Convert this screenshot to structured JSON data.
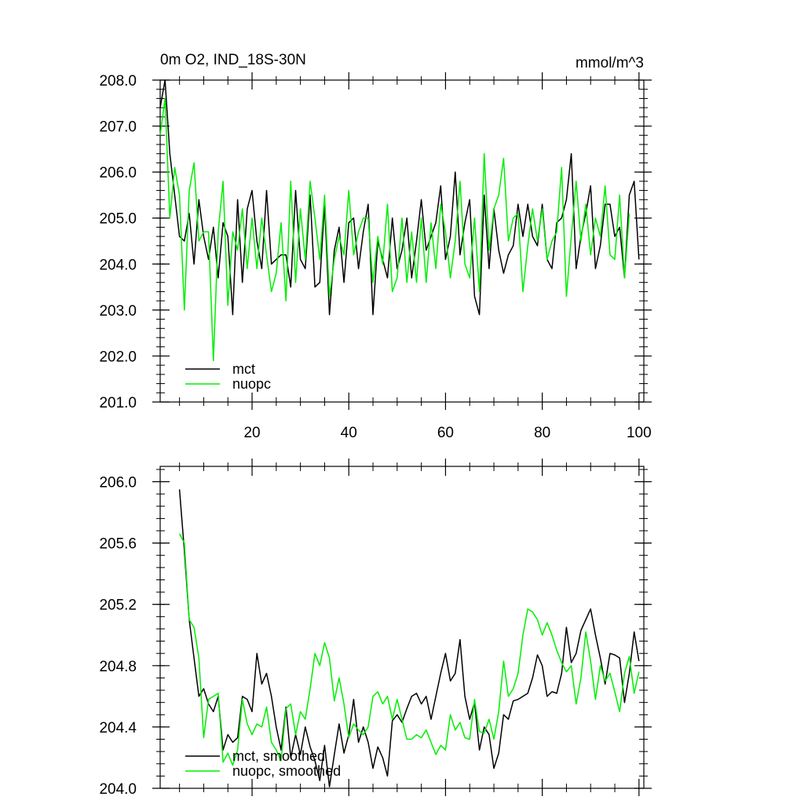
{
  "chart_data": [
    {
      "type": "line",
      "title": "0m O2, IND_18S-30N",
      "units": "mmol/m^3",
      "xlabel": "",
      "ylabel": "",
      "xlim": [
        1,
        101
      ],
      "ylim": [
        201.0,
        208.0
      ],
      "xticks": [
        20,
        40,
        60,
        80,
        100
      ],
      "xtick_labels": [
        "20",
        "40",
        "60",
        "80",
        "100"
      ],
      "yticks": [
        201.0,
        202.0,
        203.0,
        204.0,
        205.0,
        206.0,
        207.0,
        208.0
      ],
      "ytick_labels": [
        "201.0",
        "202.0",
        "203.0",
        "204.0",
        "205.0",
        "206.0",
        "207.0",
        "208.0"
      ],
      "legend_position": "bottom-left",
      "grid": false,
      "series": [
        {
          "name": "mct",
          "color": "#000000",
          "x_start": 1,
          "values": [
            207.4,
            208.0,
            206.4,
            205.5,
            204.6,
            204.5,
            205.1,
            204.0,
            205.4,
            204.6,
            204.1,
            204.8,
            203.7,
            204.9,
            204.6,
            202.9,
            205.4,
            203.6,
            205.2,
            205.6,
            204.5,
            203.9,
            205.6,
            204.0,
            204.1,
            204.2,
            204.2,
            203.5,
            205.6,
            204.1,
            203.9,
            205.5,
            203.5,
            203.6,
            205.3,
            202.9,
            204.3,
            204.8,
            203.6,
            204.9,
            205.0,
            203.9,
            204.7,
            205.3,
            202.9,
            204.5,
            204.1,
            203.7,
            205.0,
            203.9,
            204.3,
            205.0,
            203.7,
            204.5,
            205.4,
            204.3,
            204.6,
            204.9,
            205.7,
            204.1,
            204.6,
            206.0,
            204.2,
            204.9,
            205.4,
            203.3,
            202.9,
            205.5,
            203.9,
            205.2,
            204.3,
            203.8,
            204.2,
            204.4,
            205.3,
            204.6,
            205.3,
            204.6,
            204.4,
            205.3,
            204.1,
            203.9,
            204.9,
            205.0,
            205.4,
            206.4,
            203.9,
            204.6,
            205.1,
            205.7,
            203.9,
            204.4,
            205.3,
            205.3,
            204.6,
            204.8,
            203.7,
            205.5,
            205.8,
            204.1
          ]
        },
        {
          "name": "nuopc",
          "color": "#00ee00",
          "x_start": 1,
          "values": [
            206.8,
            207.6,
            205.0,
            206.1,
            205.5,
            203.0,
            205.6,
            206.2,
            204.5,
            204.7,
            204.7,
            201.9,
            204.7,
            205.8,
            203.1,
            204.7,
            204.3,
            205.2,
            203.9,
            205.0,
            203.9,
            205.0,
            204.2,
            203.4,
            203.8,
            204.9,
            203.2,
            205.8,
            203.6,
            205.2,
            204.1,
            205.8,
            205.0,
            204.1,
            205.5,
            203.3,
            204.1,
            204.6,
            204.2,
            205.6,
            204.2,
            204.7,
            205.0,
            205.0,
            203.6,
            204.6,
            204.0,
            205.3,
            203.4,
            203.7,
            205.0,
            203.6,
            204.7,
            203.6,
            205.0,
            203.6,
            204.9,
            203.9,
            205.3,
            204.7,
            203.7,
            204.5,
            205.8,
            204.0,
            203.7,
            205.0,
            203.4,
            206.4,
            204.3,
            205.2,
            205.5,
            206.3,
            204.5,
            205.0,
            205.1,
            203.4,
            204.4,
            205.2,
            204.5,
            205.2,
            204.1,
            204.5,
            204.7,
            206.1,
            203.3,
            204.6,
            205.8,
            204.5,
            205.3,
            204.2,
            205.0,
            204.6,
            205.7,
            204.2,
            204.1,
            205.5,
            203.7,
            205.1
          ]
        }
      ]
    },
    {
      "type": "line",
      "title": "",
      "xlabel": "",
      "ylabel": "",
      "xlim": [
        1,
        101
      ],
      "ylim": [
        204.0,
        206.1
      ],
      "xticks": [
        20,
        40,
        60,
        80,
        100
      ],
      "xtick_labels": [],
      "yticks": [
        204.0,
        204.4,
        204.8,
        205.2,
        205.6,
        206.0
      ],
      "ytick_labels": [
        "204.0",
        "204.4",
        "204.8",
        "205.2",
        "205.6",
        "206.0"
      ],
      "legend_position": "bottom-left",
      "grid": false,
      "series": [
        {
          "name": "mct, smoothed",
          "color": "#000000",
          "x_start": 5,
          "values": [
            205.95,
            205.55,
            205.1,
            204.85,
            204.6,
            204.65,
            204.55,
            204.5,
            204.6,
            204.25,
            204.35,
            204.3,
            204.33,
            204.6,
            204.58,
            204.5,
            204.88,
            204.68,
            204.75,
            204.6,
            204.4,
            204.25,
            204.53,
            204.2,
            204.35,
            204.22,
            204.4,
            204.27,
            204.18,
            204.05,
            204.28,
            204.01,
            204.22,
            204.42,
            204.23,
            204.35,
            204.58,
            204.3,
            204.4,
            204.3,
            204.13,
            204.27,
            204.2,
            204.08,
            204.44,
            204.48,
            204.43,
            204.52,
            204.6,
            204.62,
            204.55,
            204.6,
            204.45,
            204.6,
            204.75,
            204.88,
            204.7,
            204.75,
            204.97,
            204.6,
            204.45,
            204.56,
            204.25,
            204.4,
            204.35,
            204.13,
            204.23,
            204.48,
            204.45,
            204.57,
            204.58,
            204.6,
            204.62,
            204.72,
            204.87,
            204.8,
            204.6,
            204.63,
            204.62,
            204.75,
            205.05,
            204.82,
            204.88,
            205.03,
            205.1,
            205.17,
            205.0,
            204.85,
            204.68,
            204.88,
            204.87,
            204.85,
            204.56,
            204.75,
            205.02,
            204.83
          ]
        },
        {
          "name": "nuopc, smoothed",
          "color": "#00ee00",
          "x_start": 5,
          "values": [
            205.66,
            205.6,
            205.1,
            205.05,
            204.85,
            204.33,
            204.58,
            204.6,
            204.62,
            204.17,
            204.23,
            204.15,
            204.25,
            204.58,
            204.42,
            204.35,
            204.42,
            204.4,
            204.53,
            204.3,
            204.25,
            204.18,
            204.52,
            204.55,
            204.35,
            204.5,
            204.45,
            204.65,
            204.88,
            204.8,
            204.95,
            204.85,
            204.57,
            204.72,
            204.55,
            204.33,
            204.42,
            204.38,
            204.35,
            204.4,
            204.6,
            204.63,
            204.55,
            204.6,
            204.45,
            204.58,
            204.45,
            204.32,
            204.32,
            204.35,
            204.33,
            204.38,
            204.3,
            204.22,
            204.28,
            204.25,
            204.48,
            204.38,
            204.43,
            204.33,
            204.32,
            204.58,
            204.37,
            204.36,
            204.45,
            204.32,
            204.5,
            204.83,
            204.6,
            204.65,
            204.75,
            205.0,
            205.17,
            205.15,
            205.1,
            205.0,
            205.08,
            205.0,
            204.9,
            204.82,
            204.76,
            204.8,
            204.55,
            204.72,
            205.02,
            204.83,
            204.58,
            204.8,
            204.7,
            204.75,
            204.63,
            204.5,
            204.75,
            204.86,
            204.62,
            204.76
          ]
        }
      ]
    }
  ]
}
